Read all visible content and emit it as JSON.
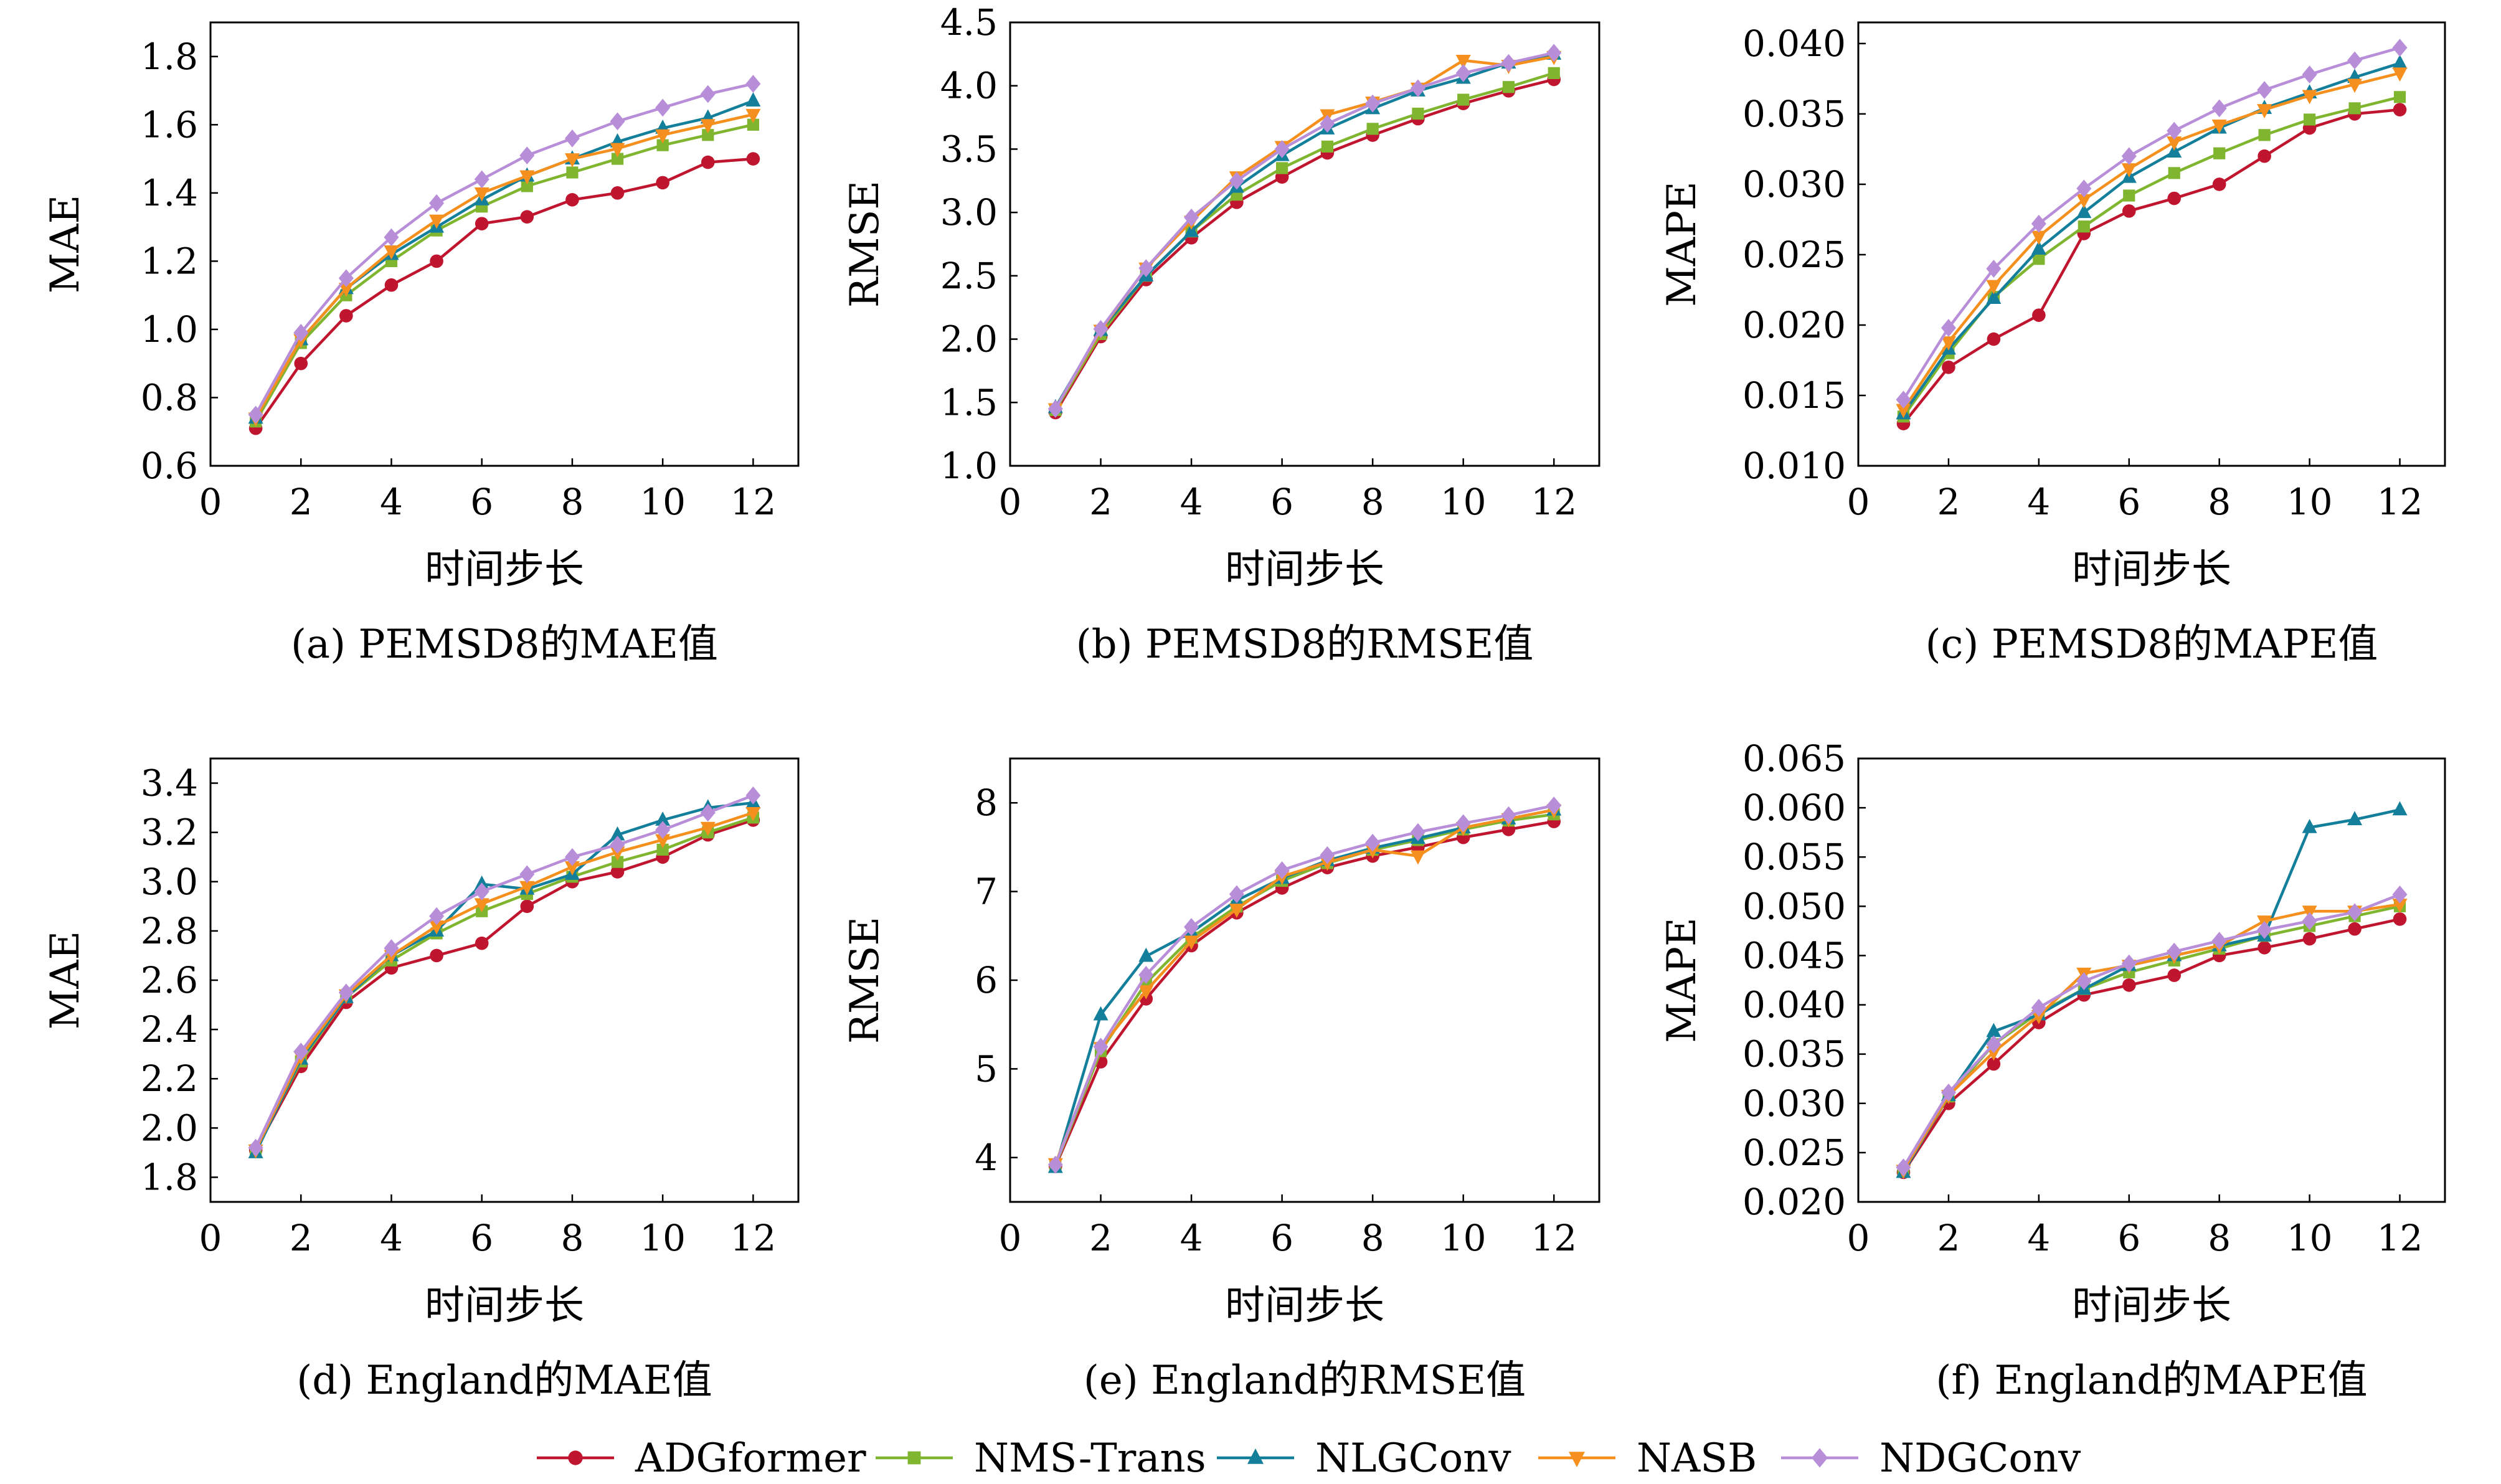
{
  "legend": [
    {
      "name": "ADGformer",
      "color": "#c0152e",
      "marker": "circle"
    },
    {
      "name": "NMS-Trans",
      "color": "#7fb52f",
      "marker": "square"
    },
    {
      "name": "NLGConv",
      "color": "#137f9b",
      "marker": "triangle-up"
    },
    {
      "name": "NASB",
      "color": "#f5901e",
      "marker": "triangle-down"
    },
    {
      "name": "NDGConv",
      "color": "#b88ed9",
      "marker": "diamond"
    }
  ],
  "chart_data": [
    {
      "type": "line",
      "caption": "(a) PEMSD8的MAE值",
      "xlabel": "时间步长",
      "ylabel": "MAE",
      "xlim": [
        0,
        13
      ],
      "ylim": [
        0.6,
        1.9
      ],
      "xticks": [
        "0",
        "2",
        "4",
        "6",
        "8",
        "10",
        "12"
      ],
      "yticks": [
        "0.6",
        "0.8",
        "1.0",
        "1.2",
        "1.4",
        "1.6",
        "1.8"
      ],
      "x": [
        1,
        2,
        3,
        4,
        5,
        6,
        7,
        8,
        9,
        10,
        11,
        12
      ],
      "series": [
        {
          "name": "ADGformer",
          "values": [
            0.71,
            0.9,
            1.04,
            1.13,
            1.2,
            1.31,
            1.33,
            1.38,
            1.4,
            1.43,
            1.49,
            1.5
          ]
        },
        {
          "name": "NMS-Trans",
          "values": [
            0.73,
            0.96,
            1.1,
            1.2,
            1.29,
            1.36,
            1.42,
            1.46,
            1.5,
            1.54,
            1.57,
            1.6
          ]
        },
        {
          "name": "NLGConv",
          "values": [
            0.74,
            0.97,
            1.12,
            1.22,
            1.3,
            1.38,
            1.45,
            1.5,
            1.55,
            1.59,
            1.62,
            1.67
          ]
        },
        {
          "name": "NASB",
          "values": [
            0.74,
            0.97,
            1.12,
            1.23,
            1.32,
            1.4,
            1.45,
            1.5,
            1.53,
            1.57,
            1.6,
            1.63
          ]
        },
        {
          "name": "NDGConv",
          "values": [
            0.75,
            0.99,
            1.15,
            1.27,
            1.37,
            1.44,
            1.51,
            1.56,
            1.61,
            1.65,
            1.69,
            1.72
          ]
        }
      ]
    },
    {
      "type": "line",
      "caption": "(b) PEMSD8的RMSE值",
      "xlabel": "时间步长",
      "ylabel": "RMSE",
      "xlim": [
        0,
        13
      ],
      "ylim": [
        1.0,
        4.5
      ],
      "xticks": [
        "0",
        "2",
        "4",
        "6",
        "8",
        "10",
        "12"
      ],
      "yticks": [
        "1.0",
        "1.5",
        "2.0",
        "2.5",
        "3.0",
        "3.5",
        "4.0",
        "4.5"
      ],
      "x": [
        1,
        2,
        3,
        4,
        5,
        6,
        7,
        8,
        9,
        10,
        11,
        12
      ],
      "series": [
        {
          "name": "ADGformer",
          "values": [
            1.42,
            2.02,
            2.47,
            2.8,
            3.08,
            3.28,
            3.47,
            3.61,
            3.74,
            3.86,
            3.96,
            4.05
          ]
        },
        {
          "name": "NMS-Trans",
          "values": [
            1.44,
            2.04,
            2.5,
            2.85,
            3.14,
            3.35,
            3.52,
            3.66,
            3.78,
            3.89,
            3.99,
            4.1
          ]
        },
        {
          "name": "NLGConv",
          "values": [
            1.46,
            2.07,
            2.5,
            2.85,
            3.2,
            3.45,
            3.66,
            3.82,
            3.96,
            4.06,
            4.18,
            4.25
          ]
        },
        {
          "name": "NASB",
          "values": [
            1.45,
            2.07,
            2.56,
            2.93,
            3.28,
            3.52,
            3.77,
            3.87,
            3.98,
            4.2,
            4.16,
            4.23
          ]
        },
        {
          "name": "NDGConv",
          "values": [
            1.45,
            2.08,
            2.56,
            2.96,
            3.25,
            3.5,
            3.7,
            3.86,
            3.98,
            4.1,
            4.18,
            4.26
          ]
        }
      ]
    },
    {
      "type": "line",
      "caption": "(c) PEMSD8的MAPE值",
      "xlabel": "时间步长",
      "ylabel": "MAPE",
      "xlim": [
        0,
        13
      ],
      "ylim": [
        0.01,
        0.0415
      ],
      "xticks": [
        "0",
        "2",
        "4",
        "6",
        "8",
        "10",
        "12"
      ],
      "yticks": [
        "0.010",
        "0.015",
        "0.020",
        "0.025",
        "0.030",
        "0.035",
        "0.040"
      ],
      "x": [
        1,
        2,
        3,
        4,
        5,
        6,
        7,
        8,
        9,
        10,
        11,
        12
      ],
      "series": [
        {
          "name": "ADGformer",
          "values": [
            0.013,
            0.017,
            0.019,
            0.0207,
            0.0265,
            0.0281,
            0.029,
            0.03,
            0.032,
            0.034,
            0.035,
            0.0353
          ]
        },
        {
          "name": "NMS-Trans",
          "values": [
            0.0135,
            0.018,
            0.022,
            0.0247,
            0.027,
            0.0292,
            0.0308,
            0.0322,
            0.0335,
            0.0346,
            0.0354,
            0.0362
          ]
        },
        {
          "name": "NLGConv",
          "values": [
            0.0137,
            0.0183,
            0.0219,
            0.0254,
            0.028,
            0.0305,
            0.0323,
            0.034,
            0.0354,
            0.0365,
            0.0376,
            0.0386
          ]
        },
        {
          "name": "NASB",
          "values": [
            0.014,
            0.0188,
            0.0228,
            0.0263,
            0.0289,
            0.0311,
            0.033,
            0.0342,
            0.0353,
            0.0363,
            0.0371,
            0.0379
          ]
        },
        {
          "name": "NDGConv",
          "values": [
            0.0147,
            0.0198,
            0.024,
            0.0272,
            0.0297,
            0.032,
            0.0338,
            0.0354,
            0.0367,
            0.0378,
            0.0388,
            0.0397
          ]
        }
      ]
    },
    {
      "type": "line",
      "caption": "(d) England的MAE值",
      "xlabel": "时间步长",
      "ylabel": "MAE",
      "xlim": [
        0,
        13
      ],
      "ylim": [
        1.7,
        3.5
      ],
      "xticks": [
        "0",
        "2",
        "4",
        "6",
        "8",
        "10",
        "12"
      ],
      "yticks": [
        "1.8",
        "2.0",
        "2.2",
        "2.4",
        "2.6",
        "2.8",
        "3.0",
        "3.2",
        "3.4"
      ],
      "x": [
        1,
        2,
        3,
        4,
        5,
        6,
        7,
        8,
        9,
        10,
        11,
        12
      ],
      "series": [
        {
          "name": "ADGformer",
          "values": [
            1.91,
            2.25,
            2.51,
            2.65,
            2.7,
            2.75,
            2.9,
            3.0,
            3.04,
            3.1,
            3.19,
            3.25
          ]
        },
        {
          "name": "NMS-Trans",
          "values": [
            1.91,
            2.27,
            2.53,
            2.68,
            2.79,
            2.88,
            2.95,
            3.02,
            3.08,
            3.13,
            3.2,
            3.26
          ]
        },
        {
          "name": "NLGConv",
          "values": [
            1.9,
            2.28,
            2.53,
            2.7,
            2.8,
            2.99,
            2.97,
            3.03,
            3.19,
            3.25,
            3.3,
            3.32
          ]
        },
        {
          "name": "NASB",
          "values": [
            1.91,
            2.29,
            2.54,
            2.7,
            2.82,
            2.91,
            2.98,
            3.06,
            3.12,
            3.17,
            3.22,
            3.28
          ]
        },
        {
          "name": "NDGConv",
          "values": [
            1.92,
            2.31,
            2.55,
            2.73,
            2.86,
            2.96,
            3.03,
            3.1,
            3.15,
            3.21,
            3.28,
            3.35
          ]
        }
      ]
    },
    {
      "type": "line",
      "caption": "(e) England的RMSE值",
      "xlabel": "时间步长",
      "ylabel": "RMSE",
      "xlim": [
        0,
        13
      ],
      "ylim": [
        3.5,
        8.5
      ],
      "xticks": [
        "0",
        "2",
        "4",
        "6",
        "8",
        "10",
        "12"
      ],
      "yticks": [
        "4",
        "5",
        "6",
        "7",
        "8"
      ],
      "x": [
        1,
        2,
        3,
        4,
        5,
        6,
        7,
        8,
        9,
        10,
        11,
        12
      ],
      "series": [
        {
          "name": "ADGformer",
          "values": [
            3.9,
            5.08,
            5.79,
            6.39,
            6.76,
            7.04,
            7.27,
            7.4,
            7.5,
            7.61,
            7.7,
            7.79
          ]
        },
        {
          "name": "NMS-Trans",
          "values": [
            3.91,
            5.2,
            5.97,
            6.48,
            6.83,
            7.12,
            7.32,
            7.47,
            7.58,
            7.7,
            7.8,
            7.87
          ]
        },
        {
          "name": "NLGConv",
          "values": [
            3.89,
            5.61,
            6.27,
            6.54,
            6.9,
            7.15,
            7.35,
            7.49,
            7.6,
            7.72,
            7.82,
            7.92
          ]
        },
        {
          "name": "NASB",
          "values": [
            3.93,
            5.24,
            5.88,
            6.44,
            6.8,
            7.17,
            7.33,
            7.47,
            7.4,
            7.72,
            7.82,
            7.92
          ]
        },
        {
          "name": "NDGConv",
          "values": [
            3.92,
            5.25,
            6.06,
            6.6,
            6.97,
            7.24,
            7.41,
            7.55,
            7.67,
            7.77,
            7.86,
            7.97
          ]
        }
      ]
    },
    {
      "type": "line",
      "caption": "(f) England的MAPE值",
      "xlabel": "时间步长",
      "ylabel": "MAPE",
      "xlim": [
        0,
        13
      ],
      "ylim": [
        0.02,
        0.065
      ],
      "xticks": [
        "0",
        "2",
        "4",
        "6",
        "8",
        "10",
        "12"
      ],
      "yticks": [
        "0.020",
        "0.025",
        "0.030",
        "0.035",
        "0.040",
        "0.045",
        "0.050",
        "0.055",
        "0.060",
        "0.065"
      ],
      "x": [
        1,
        2,
        3,
        4,
        5,
        6,
        7,
        8,
        9,
        10,
        11,
        12
      ],
      "series": [
        {
          "name": "ADGformer",
          "values": [
            0.023,
            0.03,
            0.034,
            0.0382,
            0.041,
            0.042,
            0.043,
            0.045,
            0.0458,
            0.0467,
            0.0477,
            0.0487
          ]
        },
        {
          "name": "NMS-Trans",
          "values": [
            0.0231,
            0.0307,
            0.036,
            0.0392,
            0.0416,
            0.0433,
            0.0445,
            0.0457,
            0.047,
            0.048,
            0.049,
            0.05
          ]
        },
        {
          "name": "NLGConv",
          "values": [
            0.023,
            0.0308,
            0.0373,
            0.039,
            0.0416,
            0.044,
            0.045,
            0.046,
            0.047,
            0.058,
            0.0588,
            0.0598
          ]
        },
        {
          "name": "NASB",
          "values": [
            0.0232,
            0.0308,
            0.0352,
            0.0389,
            0.0432,
            0.044,
            0.045,
            0.046,
            0.0485,
            0.0495,
            0.0495,
            0.0502
          ]
        },
        {
          "name": "NDGConv",
          "values": [
            0.0235,
            0.0311,
            0.036,
            0.0397,
            0.0424,
            0.0442,
            0.0454,
            0.0465,
            0.0476,
            0.0485,
            0.0494,
            0.0512
          ]
        }
      ]
    }
  ]
}
